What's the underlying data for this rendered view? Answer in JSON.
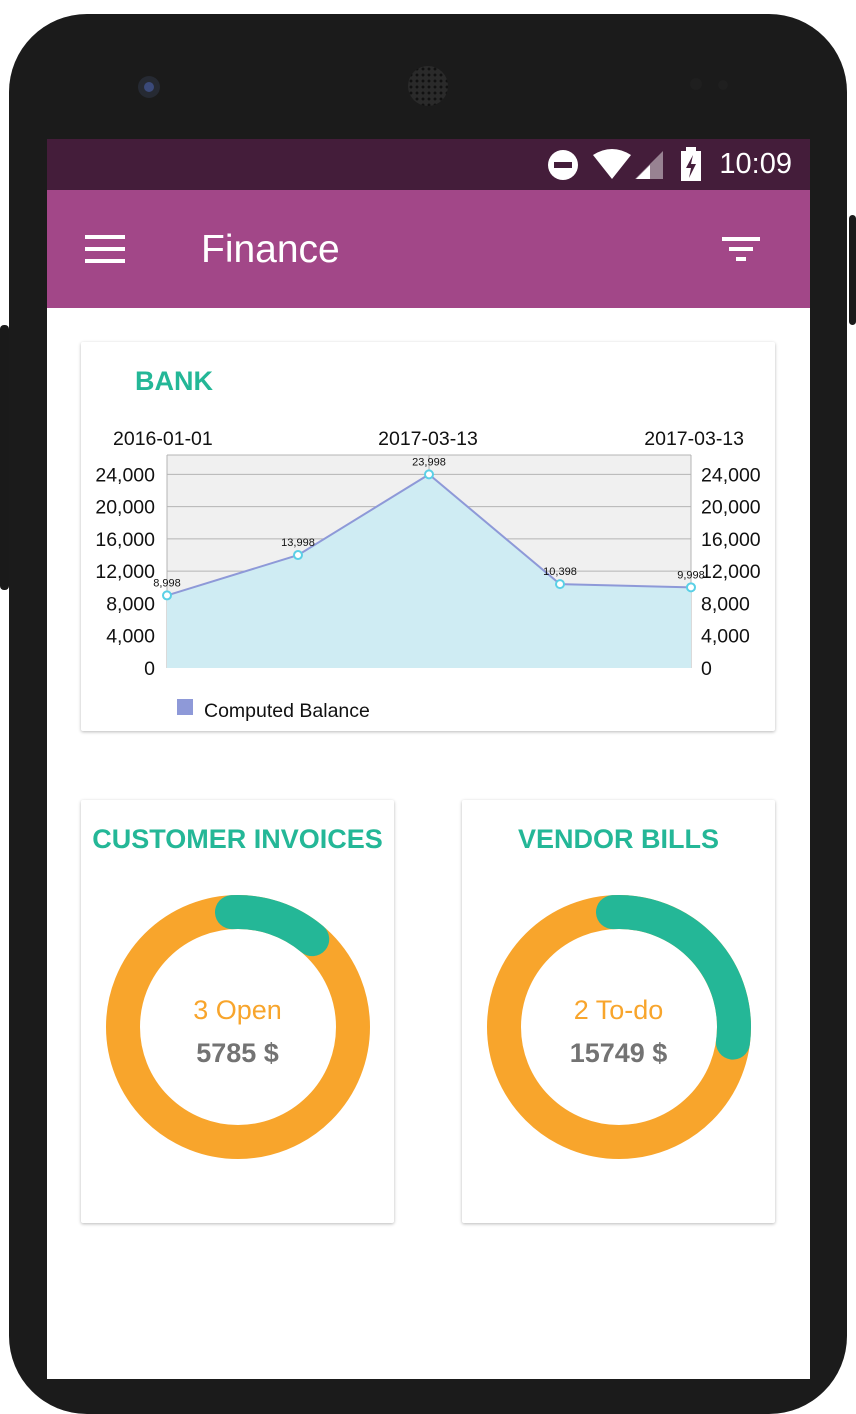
{
  "status_bar": {
    "time": "10:09",
    "icons": [
      "do-not-disturb-icon",
      "wifi-icon",
      "signal-icon",
      "battery-charging-icon"
    ]
  },
  "app_bar": {
    "title": "Finance",
    "menu_icon": "menu-icon",
    "filter_icon": "filter-icon"
  },
  "bank": {
    "title": "BANK",
    "legend": "Computed Balance",
    "colors": {
      "line": "#8e99d8",
      "area": "#cfecf3",
      "plot_bg": "#f0f0f0",
      "legend": "#8e99d8"
    }
  },
  "chart_data": {
    "type": "area",
    "title": "BANK",
    "x_tick_labels": [
      "2016-01-01",
      "2017-03-13",
      "2017-03-13"
    ],
    "y_ticks": [
      0,
      4000,
      8000,
      12000,
      16000,
      20000,
      24000
    ],
    "y_tick_labels": [
      "0",
      "4,000",
      "8,000",
      "12,000",
      "16,000",
      "20,000",
      "24,000"
    ],
    "ylim": [
      0,
      26400
    ],
    "series": [
      {
        "name": "Computed Balance",
        "values": [
          8998,
          13998,
          23998,
          10398,
          9998
        ],
        "labels": [
          "8,998",
          "13,998",
          "23,998",
          "10,398",
          "9,998"
        ]
      }
    ],
    "legend": "bottom-left"
  },
  "customer_invoices": {
    "title": "CUSTOMER INVOICES",
    "count_text": "3 Open",
    "amount_text": "5785 $",
    "open_fraction": 0.12,
    "colors": {
      "ring": "#f8a52c",
      "arc": "#24b797"
    }
  },
  "vendor_bills": {
    "title": "VENDOR BILLS",
    "count_text": "2 To-do",
    "amount_text": "15749 $",
    "todo_fraction": 0.28,
    "colors": {
      "ring": "#f8a52c",
      "arc": "#24b797"
    }
  }
}
